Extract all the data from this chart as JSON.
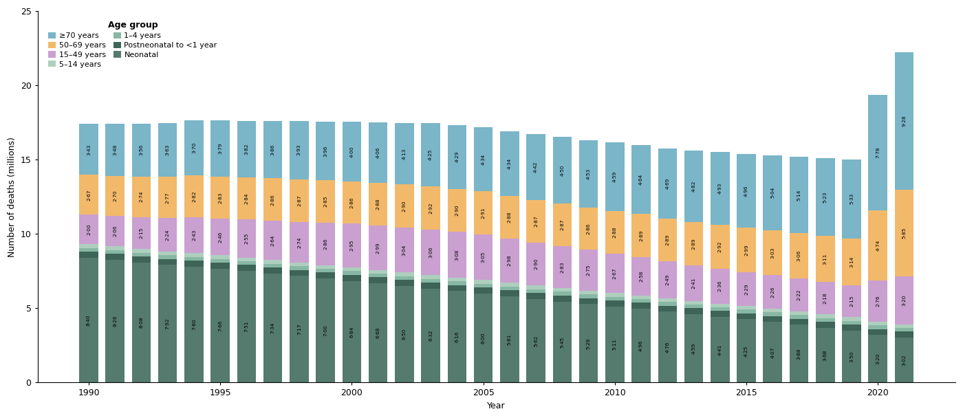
{
  "years": [
    1990,
    1991,
    1992,
    1993,
    1994,
    1995,
    1996,
    1997,
    1998,
    1999,
    2000,
    2001,
    2002,
    2003,
    2004,
    2005,
    2006,
    2007,
    2008,
    2009,
    2010,
    2011,
    2012,
    2013,
    2014,
    2015,
    2016,
    2017,
    2018,
    2019,
    2020,
    2021
  ],
  "segments": {
    "neonatal": [
      8.4,
      8.26,
      8.08,
      7.92,
      7.8,
      7.66,
      7.51,
      7.34,
      7.17,
      7.0,
      6.84,
      6.68,
      6.5,
      6.32,
      6.16,
      6.0,
      5.81,
      5.62,
      5.45,
      5.28,
      5.11,
      4.96,
      4.76,
      4.59,
      4.41,
      4.25,
      4.07,
      3.88,
      3.68,
      3.5,
      3.2,
      3.02
    ],
    "postneonatal": [
      0.4,
      0.4,
      0.4,
      0.4,
      0.4,
      0.4,
      0.4,
      0.4,
      0.4,
      0.4,
      0.4,
      0.4,
      0.4,
      0.4,
      0.4,
      0.4,
      0.4,
      0.4,
      0.4,
      0.4,
      0.4,
      0.4,
      0.4,
      0.4,
      0.4,
      0.4,
      0.4,
      0.4,
      0.4,
      0.4,
      0.4,
      0.4
    ],
    "age_1_4": [
      0.25,
      0.25,
      0.25,
      0.25,
      0.25,
      0.25,
      0.25,
      0.25,
      0.25,
      0.25,
      0.25,
      0.25,
      0.25,
      0.25,
      0.25,
      0.25,
      0.25,
      0.25,
      0.25,
      0.25,
      0.25,
      0.25,
      0.25,
      0.25,
      0.25,
      0.25,
      0.25,
      0.25,
      0.25,
      0.25,
      0.25,
      0.25
    ],
    "age_5_14": [
      0.25,
      0.25,
      0.25,
      0.25,
      0.25,
      0.25,
      0.25,
      0.25,
      0.25,
      0.25,
      0.25,
      0.25,
      0.25,
      0.25,
      0.25,
      0.25,
      0.25,
      0.25,
      0.25,
      0.25,
      0.25,
      0.25,
      0.25,
      0.25,
      0.25,
      0.25,
      0.25,
      0.25,
      0.25,
      0.25,
      0.25,
      0.25
    ],
    "age_15_49": [
      2.0,
      2.06,
      2.15,
      2.24,
      2.43,
      2.46,
      2.55,
      2.64,
      2.74,
      2.86,
      2.95,
      2.99,
      3.04,
      3.06,
      3.08,
      3.05,
      2.98,
      2.9,
      2.83,
      2.75,
      2.67,
      2.58,
      2.49,
      2.41,
      2.36,
      2.29,
      2.26,
      2.22,
      2.18,
      2.15,
      2.76,
      3.2
    ],
    "age_50_69": [
      2.67,
      2.7,
      2.74,
      2.77,
      2.82,
      2.83,
      2.84,
      2.86,
      2.87,
      2.85,
      2.86,
      2.88,
      2.9,
      2.92,
      2.9,
      2.91,
      2.88,
      2.87,
      2.87,
      2.86,
      2.88,
      2.89,
      2.89,
      2.89,
      2.92,
      2.99,
      3.03,
      3.06,
      3.11,
      3.14,
      4.74,
      5.85
    ],
    "age_ge70": [
      3.43,
      3.48,
      3.56,
      3.63,
      3.7,
      3.79,
      3.82,
      3.86,
      3.93,
      3.96,
      4.0,
      4.06,
      4.13,
      4.25,
      4.29,
      4.34,
      4.34,
      4.42,
      4.5,
      4.53,
      4.59,
      4.64,
      4.69,
      4.82,
      4.93,
      4.96,
      5.04,
      5.14,
      5.23,
      5.33,
      7.78,
      9.28
    ]
  },
  "labels": {
    "neonatal": [
      8.4,
      8.26,
      8.08,
      7.92,
      7.8,
      7.66,
      7.51,
      7.34,
      7.17,
      7.0,
      6.84,
      6.68,
      6.5,
      6.32,
      6.16,
      6.0,
      5.81,
      5.62,
      5.45,
      5.28,
      5.11,
      4.96,
      4.76,
      4.59,
      4.41,
      4.25,
      4.07,
      3.88,
      3.68,
      3.5,
      3.2,
      3.02
    ],
    "age_15_49": [
      2.0,
      2.06,
      2.15,
      2.24,
      2.43,
      2.46,
      2.55,
      2.64,
      2.74,
      2.86,
      2.95,
      2.99,
      3.04,
      3.06,
      3.08,
      3.05,
      2.98,
      2.9,
      2.83,
      2.75,
      2.67,
      2.58,
      2.49,
      2.41,
      2.36,
      2.29,
      2.26,
      2.22,
      2.18,
      2.15,
      2.76,
      3.2
    ],
    "age_50_69": [
      2.67,
      2.7,
      2.74,
      2.77,
      2.82,
      2.83,
      2.84,
      2.86,
      2.87,
      2.85,
      2.86,
      2.88,
      2.9,
      2.92,
      2.9,
      2.91,
      2.88,
      2.87,
      2.87,
      2.86,
      2.88,
      2.89,
      2.89,
      2.89,
      2.92,
      2.99,
      3.03,
      3.06,
      3.11,
      3.14,
      4.74,
      5.85
    ],
    "age_ge70": [
      3.43,
      3.48,
      3.56,
      3.63,
      3.7,
      3.79,
      3.82,
      3.86,
      3.93,
      3.96,
      4.0,
      4.06,
      4.13,
      4.25,
      4.29,
      4.34,
      4.34,
      4.42,
      4.5,
      4.53,
      4.59,
      4.64,
      4.69,
      4.82,
      4.93,
      4.96,
      5.04,
      5.14,
      5.23,
      5.33,
      7.78,
      9.28
    ]
  },
  "colors": {
    "neonatal": "#557a6e",
    "postneonatal": "#3d6457",
    "age_1_4": "#88b8a5",
    "age_5_14": "#aecfbe",
    "age_15_49": "#c9a0d0",
    "age_50_69": "#f2b96b",
    "age_ge70": "#7ab5c8"
  },
  "legend_order": [
    "age_ge70",
    "age_1_4",
    "age_50_69",
    "postneonatal",
    "age_15_49",
    "neonatal",
    "age_5_14"
  ],
  "legend_labels": {
    "neonatal": "Neonatal",
    "postneonatal": "Postneonatal to <1 year",
    "age_1_4": "1–4 years",
    "age_5_14": "5–14 years",
    "age_15_49": "15–49 years",
    "age_50_69": "50–69 years",
    "age_ge70": "≥70 years"
  },
  "ylabel": "Number of deaths (millions)",
  "xlabel": "Year",
  "ylim": [
    0,
    25
  ],
  "yticks": [
    0,
    5,
    10,
    15,
    20,
    25
  ],
  "bar_width": 0.72,
  "label_fontsize": 5.3
}
